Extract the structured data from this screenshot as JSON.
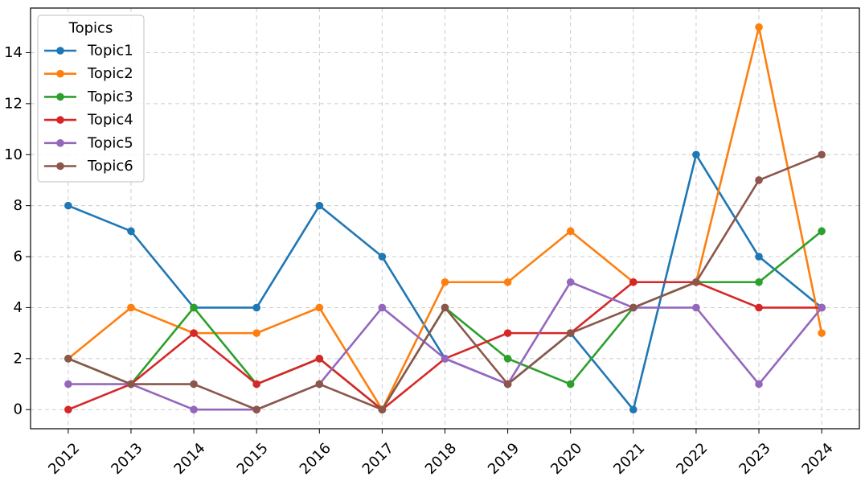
{
  "chart_data": {
    "type": "line",
    "title": "",
    "xlabel": "",
    "ylabel": "",
    "categories": [
      "2012",
      "2013",
      "2014",
      "2015",
      "2016",
      "2017",
      "2018",
      "2019",
      "2020",
      "2021",
      "2022",
      "2023",
      "2024"
    ],
    "yticks": [
      "0",
      "2",
      "4",
      "6",
      "8",
      "10",
      "12",
      "14"
    ],
    "ylim": [
      -0.75,
      15.75
    ],
    "grid": true,
    "legend": {
      "title": "Topics",
      "placement": "top-left"
    },
    "series": [
      {
        "name": "Topic1",
        "color": "#1f77b4",
        "values": [
          8,
          7,
          4,
          4,
          8,
          6,
          2,
          1,
          3,
          0,
          10,
          6,
          4
        ]
      },
      {
        "name": "Topic2",
        "color": "#ff7f0e",
        "values": [
          2,
          4,
          3,
          3,
          4,
          0,
          5,
          5,
          7,
          5,
          5,
          15,
          3
        ]
      },
      {
        "name": "Topic3",
        "color": "#2ca02c",
        "values": [
          2,
          1,
          4,
          1,
          2,
          0,
          4,
          2,
          1,
          4,
          5,
          5,
          7
        ]
      },
      {
        "name": "Topic4",
        "color": "#d62728",
        "values": [
          0,
          1,
          3,
          1,
          2,
          0,
          2,
          3,
          3,
          5,
          5,
          4,
          4
        ]
      },
      {
        "name": "Topic5",
        "color": "#9467bd",
        "values": [
          1,
          1,
          0,
          0,
          1,
          4,
          2,
          1,
          5,
          4,
          4,
          1,
          4
        ]
      },
      {
        "name": "Topic6",
        "color": "#8c564b",
        "values": [
          2,
          1,
          1,
          0,
          1,
          0,
          4,
          1,
          3,
          4,
          5,
          9,
          10
        ]
      }
    ]
  }
}
